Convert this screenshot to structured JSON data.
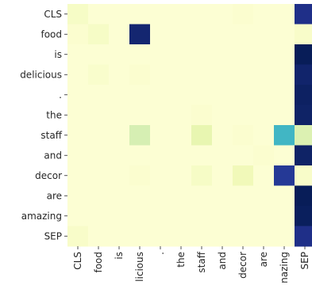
{
  "chart_data": {
    "type": "heatmap",
    "rows": [
      "CLS",
      "food",
      "is",
      "delicious",
      ".",
      "the",
      "staff",
      "and",
      "decor",
      "are",
      "amazing",
      "SEP"
    ],
    "cols": [
      "CLS",
      "food",
      "is",
      "delicious",
      ".",
      "the",
      "staff",
      "and",
      "decor",
      "are",
      "amazing",
      "SEP"
    ],
    "col_labels_visible": [
      "CLS",
      "food",
      "is",
      "licious",
      ".",
      "the",
      "staff",
      "and",
      "decor",
      "are",
      "nazing",
      "SEP"
    ],
    "values": [
      [
        0.06,
        0.02,
        0.02,
        0.02,
        0.02,
        0.02,
        0.02,
        0.02,
        0.03,
        0.02,
        0.02,
        0.9
      ],
      [
        0.03,
        0.06,
        0.02,
        0.95,
        0.02,
        0.02,
        0.02,
        0.02,
        0.02,
        0.02,
        0.02,
        0.05
      ],
      [
        0.02,
        0.02,
        0.02,
        0.02,
        0.02,
        0.02,
        0.02,
        0.02,
        0.02,
        0.02,
        0.02,
        1.0
      ],
      [
        0.02,
        0.04,
        0.02,
        0.03,
        0.02,
        0.02,
        0.02,
        0.02,
        0.02,
        0.02,
        0.02,
        0.96
      ],
      [
        0.02,
        0.02,
        0.02,
        0.02,
        0.02,
        0.02,
        0.02,
        0.02,
        0.02,
        0.02,
        0.02,
        0.98
      ],
      [
        0.02,
        0.02,
        0.02,
        0.02,
        0.02,
        0.02,
        0.03,
        0.02,
        0.02,
        0.02,
        0.02,
        0.97
      ],
      [
        0.02,
        0.02,
        0.02,
        0.2,
        0.02,
        0.02,
        0.14,
        0.02,
        0.03,
        0.02,
        0.5,
        0.18
      ],
      [
        0.02,
        0.02,
        0.02,
        0.02,
        0.02,
        0.02,
        0.02,
        0.02,
        0.02,
        0.03,
        0.02,
        0.97
      ],
      [
        0.02,
        0.02,
        0.02,
        0.03,
        0.02,
        0.02,
        0.06,
        0.02,
        0.1,
        0.02,
        0.86,
        0.05
      ],
      [
        0.02,
        0.02,
        0.02,
        0.02,
        0.02,
        0.02,
        0.02,
        0.02,
        0.02,
        0.02,
        0.02,
        1.0
      ],
      [
        0.02,
        0.02,
        0.02,
        0.02,
        0.02,
        0.02,
        0.02,
        0.02,
        0.02,
        0.02,
        0.02,
        0.99
      ],
      [
        0.05,
        0.02,
        0.02,
        0.02,
        0.02,
        0.02,
        0.02,
        0.02,
        0.02,
        0.02,
        0.02,
        0.9
      ]
    ],
    "colormap": "YlGnBu",
    "vmin": 0,
    "vmax": 1,
    "grid": false,
    "legend": "none"
  }
}
